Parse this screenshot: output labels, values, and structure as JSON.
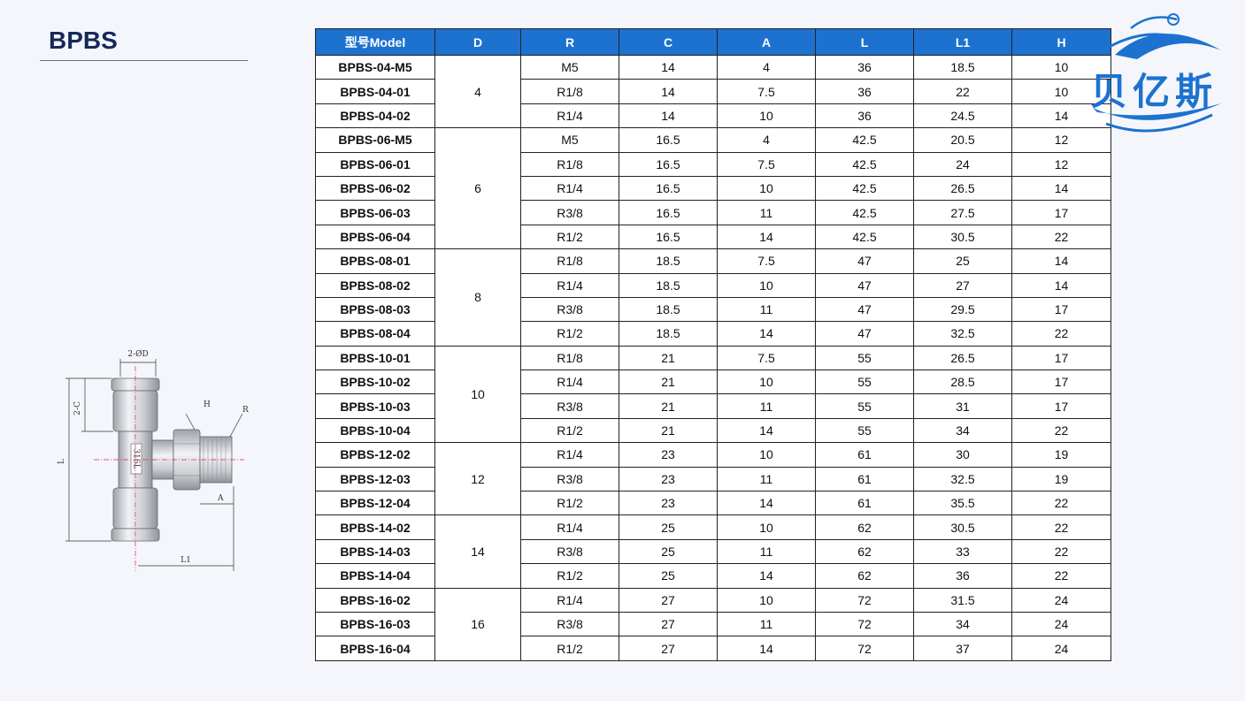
{
  "page_title": "BPBS",
  "logo_text": "贝亿斯",
  "drawing_labels": {
    "od": "2-ØD",
    "c": "2-C",
    "h": "H",
    "r": "R",
    "a": "A",
    "l": "L",
    "l1": "L1",
    "stamp": "316L"
  },
  "table": {
    "headers": [
      "型号Model",
      "D",
      "R",
      "C",
      "A",
      "L",
      "L1",
      "H"
    ],
    "groups": [
      {
        "d": "4",
        "rows": [
          [
            "BPBS-04-M5",
            "M5",
            "14",
            "4",
            "36",
            "18.5",
            "10"
          ],
          [
            "BPBS-04-01",
            "R1/8",
            "14",
            "7.5",
            "36",
            "22",
            "10"
          ],
          [
            "BPBS-04-02",
            "R1/4",
            "14",
            "10",
            "36",
            "24.5",
            "14"
          ]
        ]
      },
      {
        "d": "6",
        "rows": [
          [
            "BPBS-06-M5",
            "M5",
            "16.5",
            "4",
            "42.5",
            "20.5",
            "12"
          ],
          [
            "BPBS-06-01",
            "R1/8",
            "16.5",
            "7.5",
            "42.5",
            "24",
            "12"
          ],
          [
            "BPBS-06-02",
            "R1/4",
            "16.5",
            "10",
            "42.5",
            "26.5",
            "14"
          ],
          [
            "BPBS-06-03",
            "R3/8",
            "16.5",
            "11",
            "42.5",
            "27.5",
            "17"
          ],
          [
            "BPBS-06-04",
            "R1/2",
            "16.5",
            "14",
            "42.5",
            "30.5",
            "22"
          ]
        ]
      },
      {
        "d": "8",
        "rows": [
          [
            "BPBS-08-01",
            "R1/8",
            "18.5",
            "7.5",
            "47",
            "25",
            "14"
          ],
          [
            "BPBS-08-02",
            "R1/4",
            "18.5",
            "10",
            "47",
            "27",
            "14"
          ],
          [
            "BPBS-08-03",
            "R3/8",
            "18.5",
            "11",
            "47",
            "29.5",
            "17"
          ],
          [
            "BPBS-08-04",
            "R1/2",
            "18.5",
            "14",
            "47",
            "32.5",
            "22"
          ]
        ]
      },
      {
        "d": "10",
        "rows": [
          [
            "BPBS-10-01",
            "R1/8",
            "21",
            "7.5",
            "55",
            "26.5",
            "17"
          ],
          [
            "BPBS-10-02",
            "R1/4",
            "21",
            "10",
            "55",
            "28.5",
            "17"
          ],
          [
            "BPBS-10-03",
            "R3/8",
            "21",
            "11",
            "55",
            "31",
            "17"
          ],
          [
            "BPBS-10-04",
            "R1/2",
            "21",
            "14",
            "55",
            "34",
            "22"
          ]
        ]
      },
      {
        "d": "12",
        "rows": [
          [
            "BPBS-12-02",
            "R1/4",
            "23",
            "10",
            "61",
            "30",
            "19"
          ],
          [
            "BPBS-12-03",
            "R3/8",
            "23",
            "11",
            "61",
            "32.5",
            "19"
          ],
          [
            "BPBS-12-04",
            "R1/2",
            "23",
            "14",
            "61",
            "35.5",
            "22"
          ]
        ]
      },
      {
        "d": "14",
        "rows": [
          [
            "BPBS-14-02",
            "R1/4",
            "25",
            "10",
            "62",
            "30.5",
            "22"
          ],
          [
            "BPBS-14-03",
            "R3/8",
            "25",
            "11",
            "62",
            "33",
            "22"
          ],
          [
            "BPBS-14-04",
            "R1/2",
            "25",
            "14",
            "62",
            "36",
            "22"
          ]
        ]
      },
      {
        "d": "16",
        "rows": [
          [
            "BPBS-16-02",
            "R1/4",
            "27",
            "10",
            "72",
            "31.5",
            "24"
          ],
          [
            "BPBS-16-03",
            "R3/8",
            "27",
            "11",
            "72",
            "34",
            "24"
          ],
          [
            "BPBS-16-04",
            "R1/2",
            "27",
            "14",
            "72",
            "37",
            "24"
          ]
        ]
      }
    ]
  },
  "colors": {
    "header_bg": "#1d72d0",
    "title": "#17295a",
    "logo": "#1d72d0"
  }
}
